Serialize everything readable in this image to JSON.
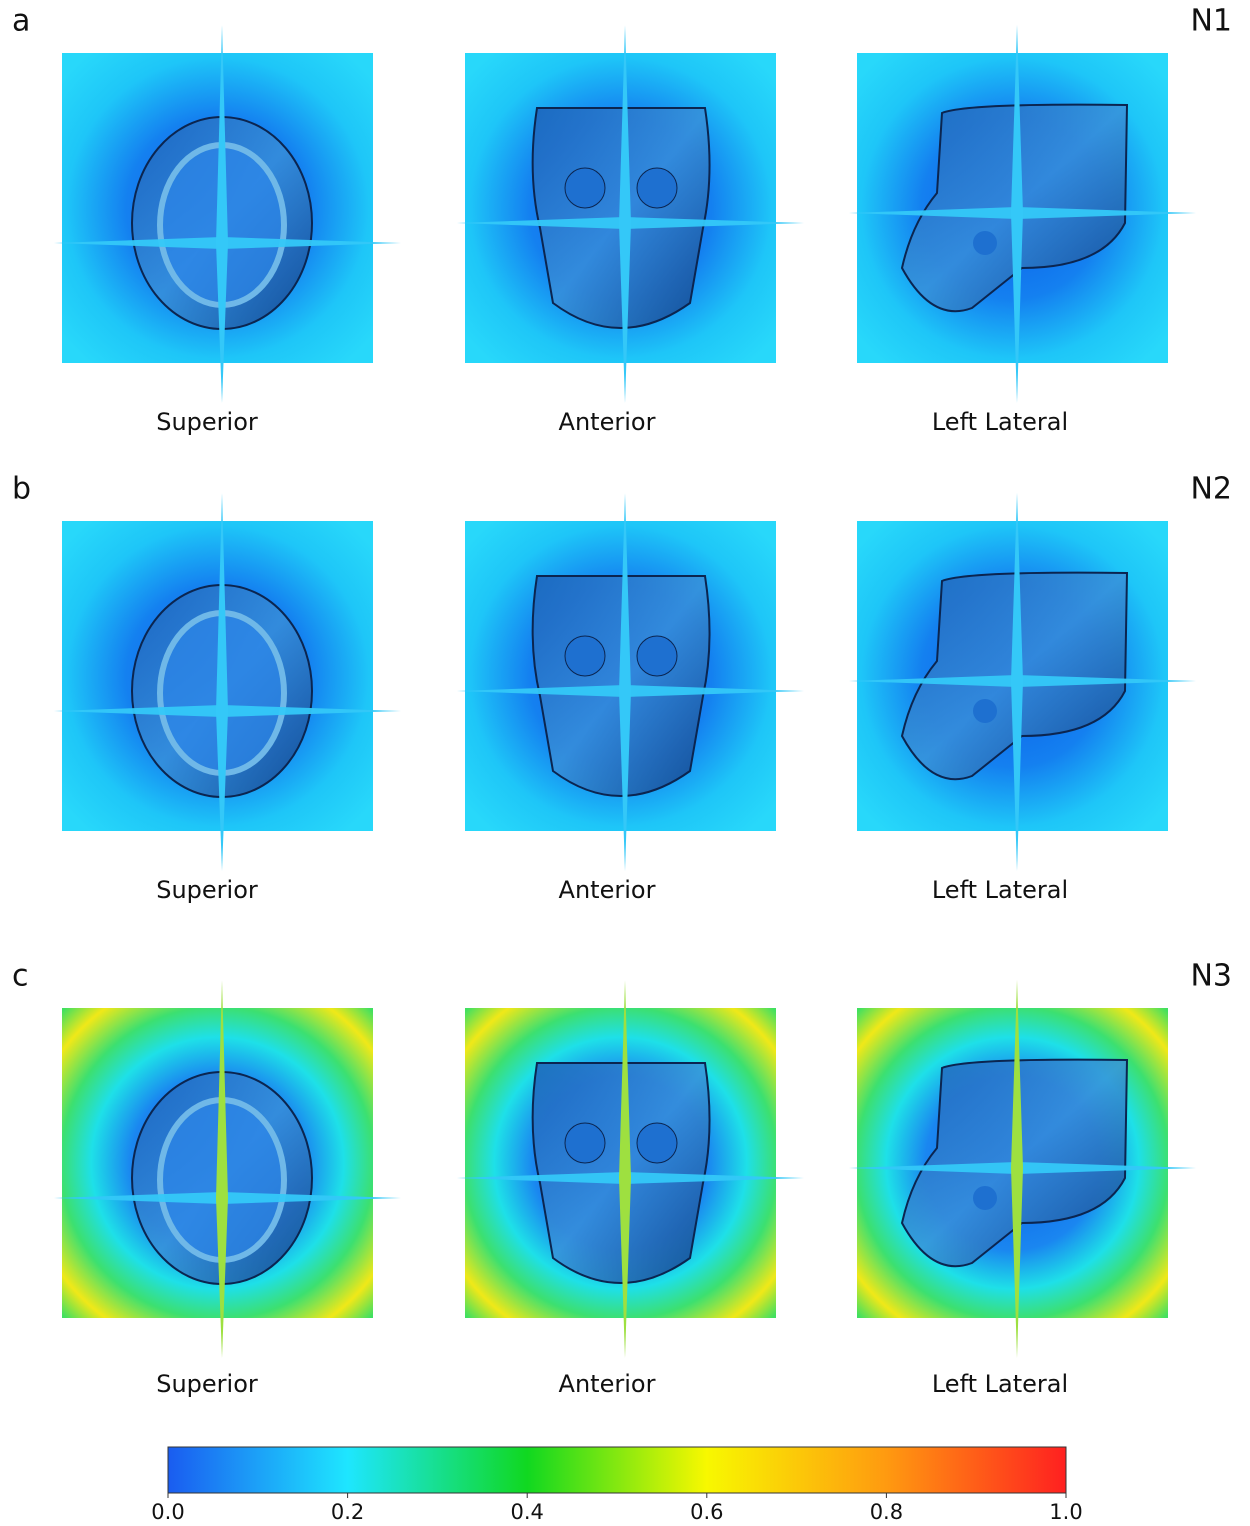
{
  "rows": [
    {
      "letter": "a",
      "name": "N1",
      "views": [
        "Superior",
        "Anterior",
        "Left Lateral"
      ]
    },
    {
      "letter": "b",
      "name": "N2",
      "views": [
        "Superior",
        "Anterior",
        "Left Lateral"
      ]
    },
    {
      "letter": "c",
      "name": "N3",
      "views": [
        "Superior",
        "Anterior",
        "Left Lateral"
      ]
    }
  ],
  "colorbar": {
    "lim": [
      0,
      1
    ],
    "ticks": [
      {
        "value": 0,
        "label": "0.0"
      },
      {
        "value": 0.2,
        "label": "0.2"
      },
      {
        "value": 0.4,
        "label": "0.4"
      },
      {
        "value": 0.6,
        "label": "0.6"
      },
      {
        "value": 0.8,
        "label": "0.8"
      },
      {
        "value": 1,
        "label": "1.0"
      }
    ],
    "colors": [
      "#1a5cf0",
      "#1ee6ff",
      "#10d820",
      "#f8f800",
      "#ff9a10",
      "#ff2020"
    ]
  }
}
